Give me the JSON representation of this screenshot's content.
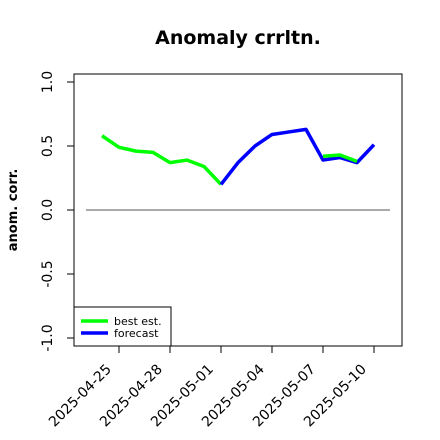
{
  "chart_data": {
    "type": "line",
    "title": "Anomaly crrltn.",
    "ylabel": "anom. corr.",
    "xlabel": "",
    "ylim": [
      -1.0,
      1.0
    ],
    "yticks": [
      "-1.0",
      "-0.5",
      "0.0",
      "0.5",
      "1.0"
    ],
    "x": [
      "2025-04-24",
      "2025-04-25",
      "2025-04-26",
      "2025-04-27",
      "2025-04-28",
      "2025-04-29",
      "2025-04-30",
      "2025-05-01",
      "2025-05-02",
      "2025-05-03",
      "2025-05-04",
      "2025-05-05",
      "2025-05-06",
      "2025-05-07",
      "2025-05-08",
      "2025-05-09",
      "2025-05-10"
    ],
    "xtick_labels": [
      "2025-04-25",
      "2025-04-28",
      "2025-05-01",
      "2025-05-04",
      "2025-05-07",
      "2025-05-10"
    ],
    "highlight_tick": "2025-05-01",
    "highlight_color": "#228b22",
    "reference_line": 0.0,
    "series": [
      {
        "name": "best est.",
        "color": "#00ff00",
        "values": [
          0.58,
          0.49,
          0.46,
          0.45,
          0.37,
          0.39,
          0.34,
          0.2,
          null,
          null,
          null,
          null,
          null,
          null,
          null,
          null,
          null
        ]
      },
      {
        "name": "forecast",
        "color": "#0000ff",
        "values": [
          null,
          null,
          null,
          null,
          null,
          null,
          null,
          0.2,
          0.37,
          0.5,
          0.59,
          0.61,
          0.63,
          0.39,
          0.41,
          0.37,
          0.51
        ]
      },
      {
        "name": "",
        "color": "#00ff00",
        "values": [
          null,
          null,
          null,
          null,
          null,
          null,
          null,
          null,
          null,
          null,
          null,
          null,
          null,
          0.42,
          0.43,
          0.38,
          null
        ]
      }
    ],
    "legend_position": "bottom-left"
  }
}
